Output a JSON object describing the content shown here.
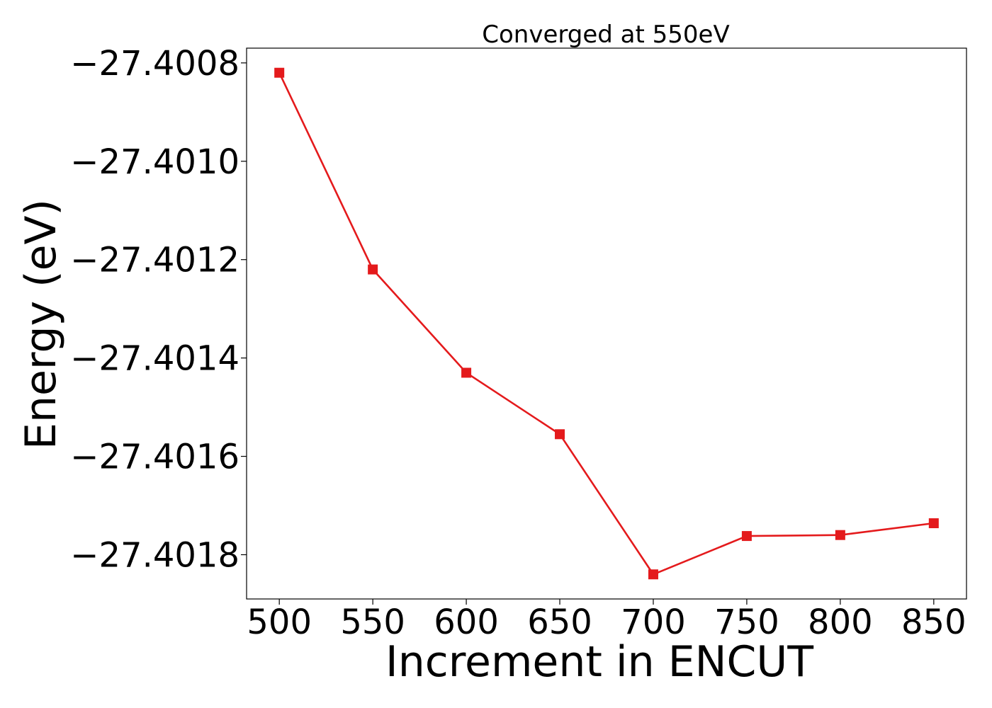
{
  "chart_data": {
    "type": "line",
    "title": "Converged at 550eV",
    "xlabel": "Increment in ENCUT",
    "ylabel": "Energy (eV)",
    "x": [
      500,
      550,
      600,
      650,
      700,
      750,
      800,
      850
    ],
    "series": [
      {
        "values": [
          -27.40082,
          -27.40122,
          -27.40143,
          -27.401555,
          -27.40184,
          -27.401762,
          -27.40176,
          -27.401736
        ],
        "color": "#e41a1c",
        "marker": "square"
      }
    ],
    "xlim": [
      482.5,
      867.5
    ],
    "ylim": [
      -27.40189,
      -27.40077
    ],
    "x_ticks": [
      500,
      550,
      600,
      650,
      700,
      750,
      800,
      850
    ],
    "x_tick_labels": [
      "500",
      "550",
      "600",
      "650",
      "700",
      "750",
      "800",
      "850"
    ],
    "y_ticks": [
      -27.4008,
      -27.401,
      -27.4012,
      -27.4014,
      -27.4016,
      -27.4018
    ],
    "y_tick_labels": [
      "−27.4008",
      "−27.4010",
      "−27.4012",
      "−27.4014",
      "−27.4016",
      "−27.4018"
    ],
    "grid": false,
    "legend": "none"
  }
}
